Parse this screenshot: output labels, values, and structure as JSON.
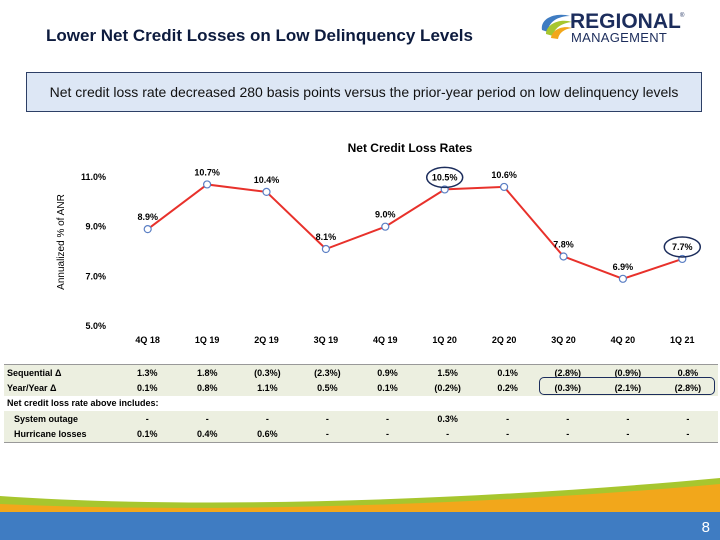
{
  "slide": {
    "title": "Lower Net Credit Losses on Low Delinquency Levels",
    "callout": "Net credit loss rate decreased 280 basis points versus the prior-year period on low delinquency levels",
    "page_number": "8"
  },
  "logo": {
    "line1": "REGIONAL",
    "line2": "MANAGEMENT",
    "mark": "®"
  },
  "colors": {
    "line": "#e8312b",
    "marker_fill": "#ffffff",
    "marker_stroke": "#5b7fc4",
    "highlight": "#1c2d5c",
    "footer_blue": "#3f7cc2",
    "footer_green": "#a7c62e"
  },
  "chart_data": {
    "type": "line",
    "title": "Net Credit Loss Rates",
    "ylabel": "Annualized % of ANR",
    "xlabel": "",
    "categories": [
      "4Q 18",
      "1Q 19",
      "2Q 19",
      "3Q 19",
      "4Q 19",
      "1Q 20",
      "2Q 20",
      "3Q 20",
      "4Q 20",
      "1Q 21"
    ],
    "values": [
      8.9,
      10.7,
      10.4,
      8.1,
      9.0,
      10.5,
      10.6,
      7.8,
      6.9,
      7.7
    ],
    "data_labels": [
      "8.9%",
      "10.7%",
      "10.4%",
      "8.1%",
      "9.0%",
      "10.5%",
      "10.6%",
      "7.8%",
      "6.9%",
      "7.7%"
    ],
    "yticks": [
      5.0,
      7.0,
      9.0,
      11.0
    ],
    "ytick_labels": [
      "5.0%",
      "7.0%",
      "9.0%",
      "11.0%"
    ],
    "ylim": [
      5.0,
      11.0
    ],
    "highlighted": [
      "1Q 20",
      "1Q 21"
    ],
    "grid": false
  },
  "table": {
    "rows": [
      {
        "label": "Sequential Δ",
        "values": [
          "1.3%",
          "1.8%",
          "(0.3%)",
          "(2.3%)",
          "0.9%",
          "1.5%",
          "0.1%",
          "(2.8%)",
          "(0.9%)",
          "0.8%"
        ],
        "indent": false
      },
      {
        "label": "Year/Year Δ",
        "values": [
          "0.1%",
          "0.8%",
          "1.1%",
          "0.5%",
          "0.1%",
          "(0.2%)",
          "0.2%",
          "(0.3%)",
          "(2.1%)",
          "(2.8%)"
        ],
        "indent": false
      },
      {
        "label": "Net credit loss rate above includes:",
        "values": [],
        "indent": false
      },
      {
        "label": "System outage",
        "values": [
          "-",
          "-",
          "-",
          "-",
          "-",
          "0.3%",
          "-",
          "-",
          "-",
          "-"
        ],
        "indent": true
      },
      {
        "label": "Hurricane losses",
        "values": [
          "0.1%",
          "0.4%",
          "0.6%",
          "-",
          "-",
          "-",
          "-",
          "-",
          "-",
          "-"
        ],
        "indent": true
      }
    ]
  }
}
